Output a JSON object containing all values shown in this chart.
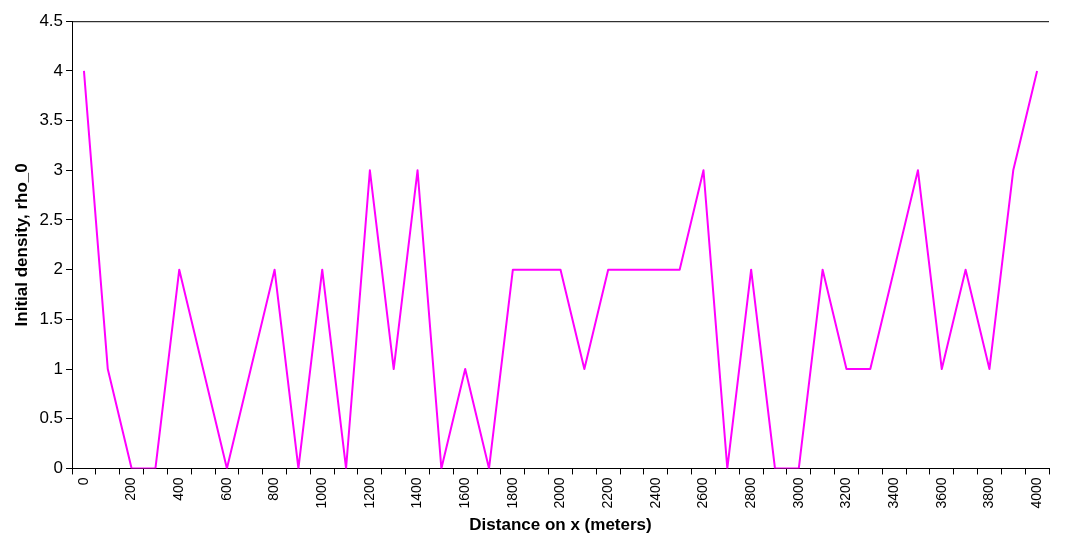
{
  "chart_data": {
    "type": "line",
    "xlabel": "Distance on x (meters)",
    "ylabel": "Initial density, rho_0",
    "categories": [
      "0",
      null,
      "200",
      null,
      "400",
      null,
      "600",
      null,
      "800",
      null,
      "1000",
      null,
      "1200",
      null,
      "1400",
      null,
      "1600",
      null,
      "1800",
      null,
      "2000",
      null,
      "2200",
      null,
      "2400",
      null,
      "2600",
      null,
      "2800",
      null,
      "3000",
      null,
      "3200",
      null,
      "3400",
      null,
      "3600",
      null,
      "3800",
      null,
      "4000"
    ],
    "series": [
      {
        "color": "#ff00ff",
        "values": [
          4,
          1,
          0,
          0,
          2,
          1,
          0,
          1,
          2,
          0,
          2,
          0,
          3,
          1,
          3,
          0,
          1,
          0,
          2,
          2,
          2,
          1,
          2,
          2,
          2,
          2,
          3,
          0,
          2,
          0,
          0,
          2,
          1,
          1,
          2,
          3,
          1,
          2,
          1,
          3,
          4
        ]
      }
    ],
    "ylim": [
      0,
      4.5
    ],
    "yticks": [
      0,
      0.5,
      1,
      1.5,
      2,
      2.5,
      3,
      3.5,
      4,
      4.5
    ],
    "grid": false,
    "legend": false,
    "marker": "none",
    "line_style": "solid"
  }
}
